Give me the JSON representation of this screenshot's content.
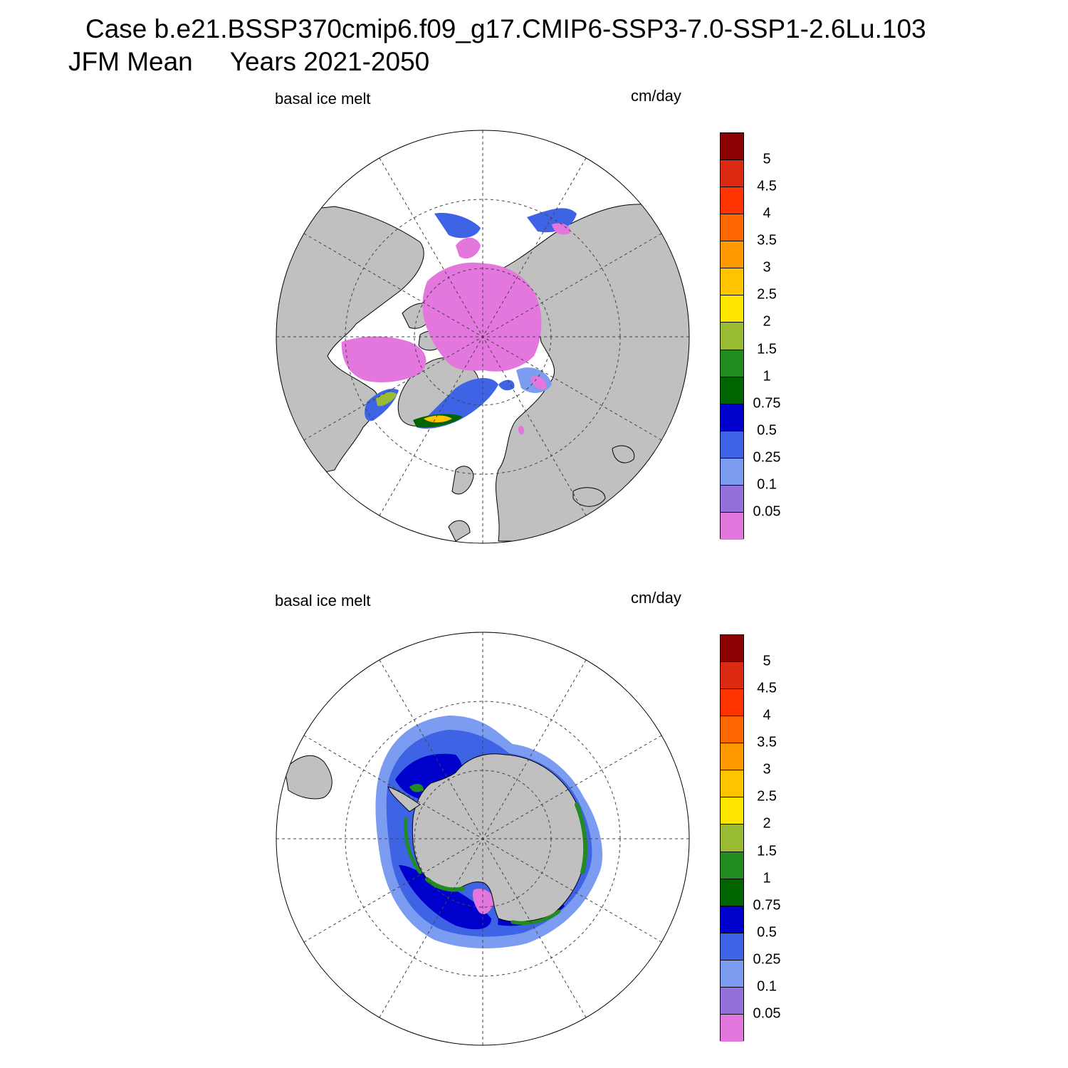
{
  "title_line1": "Case b.e21.BSSP370cmip6.f09_g17.CMIP6-SSP3-7.0-SSP1-2.6Lu.103",
  "title_line2a": "JFM Mean",
  "title_line2b": "Years 2021-2050",
  "panels": [
    {
      "id": "north",
      "variable": "basal ice melt",
      "units": "cm/day"
    },
    {
      "id": "south",
      "variable": "basal ice melt",
      "units": "cm/day"
    }
  ],
  "colorbar": {
    "levels": [
      "5",
      "4.5",
      "4",
      "3.5",
      "3",
      "2.5",
      "2",
      "1.5",
      "1",
      "0.75",
      "0.5",
      "0.25",
      "0.1",
      "0.05"
    ],
    "colors_top_to_bottom": [
      "#8b0000",
      "#dc2a12",
      "#ff3300",
      "#ff6600",
      "#ff9900",
      "#ffc300",
      "#ffe600",
      "#99bb33",
      "#228b22",
      "#006400",
      "#0000cc",
      "#3e63e5",
      "#7b9cf0",
      "#9370db",
      "#e377dd"
    ]
  },
  "style": {
    "land": "#c0c0c0",
    "ocean": "#ffffff",
    "grid": "#444444"
  }
}
